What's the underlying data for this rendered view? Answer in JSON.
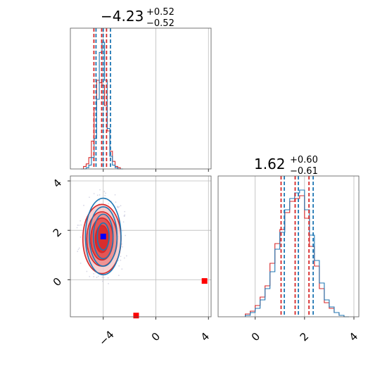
{
  "chart_data": [
    {
      "type": "histogram",
      "panel": "top-left",
      "title": {
        "main": "−4.23",
        "sup": "+0.52",
        "sub": "−0.52"
      },
      "xlim": [
        -6.5,
        4.2
      ],
      "grid": true,
      "colors": {
        "series_a": "#d62728",
        "series_b": "#1f77b4"
      },
      "x": [
        -5.6,
        -5.4,
        -5.2,
        -5.0,
        -4.8,
        -4.6,
        -4.4,
        -4.2,
        -4.0,
        -3.8,
        -3.6,
        -3.4,
        -3.2,
        -3.0,
        -2.8,
        -2.6
      ],
      "series": [
        {
          "color": "red",
          "values": [
            0,
            2,
            4,
            9,
            22,
            48,
            70,
            68,
            66,
            50,
            30,
            14,
            6,
            2,
            1,
            0
          ]
        },
        {
          "color": "blue",
          "values": [
            0,
            0,
            1,
            3,
            9,
            24,
            55,
            92,
            100,
            70,
            32,
            10,
            3,
            1,
            0,
            0
          ]
        }
      ],
      "quantile_lines": {
        "red": [
          -4.71,
          -4.12,
          -3.75
        ],
        "blue": [
          -4.55,
          -4.0,
          -3.45
        ]
      }
    },
    {
      "type": "contour",
      "panel": "bottom-left",
      "xlim": [
        -6.5,
        4.2
      ],
      "ylim": [
        -1.5,
        4.2
      ],
      "xticks": [
        "−4",
        "0",
        "4"
      ],
      "yticks": [
        "0",
        "2",
        "4"
      ],
      "grid": true,
      "markers": [
        {
          "x": -4.0,
          "y": 1.75,
          "color": "blue"
        },
        {
          "x": -1.5,
          "y": -1.45,
          "color": "red"
        },
        {
          "x": 3.7,
          "y": -0.05,
          "color": "red"
        }
      ],
      "levels": [
        {
          "series": "red",
          "cx": -4.1,
          "cy": 1.65,
          "rx": [
            1.45,
            1.15,
            0.85,
            0.5
          ],
          "ry": [
            1.4,
            1.1,
            0.85,
            0.55
          ]
        },
        {
          "series": "blue",
          "cx": -4.0,
          "cy": 1.75,
          "rx": [
            1.35,
            1.05,
            0.75,
            0.45
          ],
          "ry": [
            1.55,
            1.2,
            0.9,
            0.55
          ]
        }
      ]
    },
    {
      "type": "histogram",
      "panel": "bottom-right",
      "title": {
        "main": "1.62",
        "sup": "+0.60",
        "sub": "−0.61"
      },
      "xlim": [
        -1.5,
        4.2
      ],
      "xticks": [
        "0",
        "2",
        "4"
      ],
      "grid": true,
      "x": [
        -0.3,
        -0.1,
        0.1,
        0.3,
        0.5,
        0.7,
        0.9,
        1.1,
        1.3,
        1.5,
        1.7,
        1.9,
        2.1,
        2.3,
        2.5,
        2.7,
        2.9,
        3.1,
        3.3,
        3.5,
        3.7
      ],
      "series": [
        {
          "color": "red",
          "values": [
            2,
            4,
            8,
            14,
            22,
            38,
            52,
            62,
            74,
            82,
            84,
            86,
            70,
            50,
            36,
            20,
            10,
            6,
            3,
            1,
            0
          ]
        },
        {
          "color": "blue",
          "values": [
            1,
            3,
            6,
            12,
            20,
            32,
            48,
            60,
            76,
            84,
            88,
            90,
            76,
            58,
            40,
            24,
            12,
            7,
            3,
            1,
            0
          ]
        }
      ],
      "quantile_lines": {
        "red": [
          1.05,
          1.62,
          2.18
        ],
        "blue": [
          1.18,
          1.75,
          2.35
        ]
      }
    }
  ]
}
